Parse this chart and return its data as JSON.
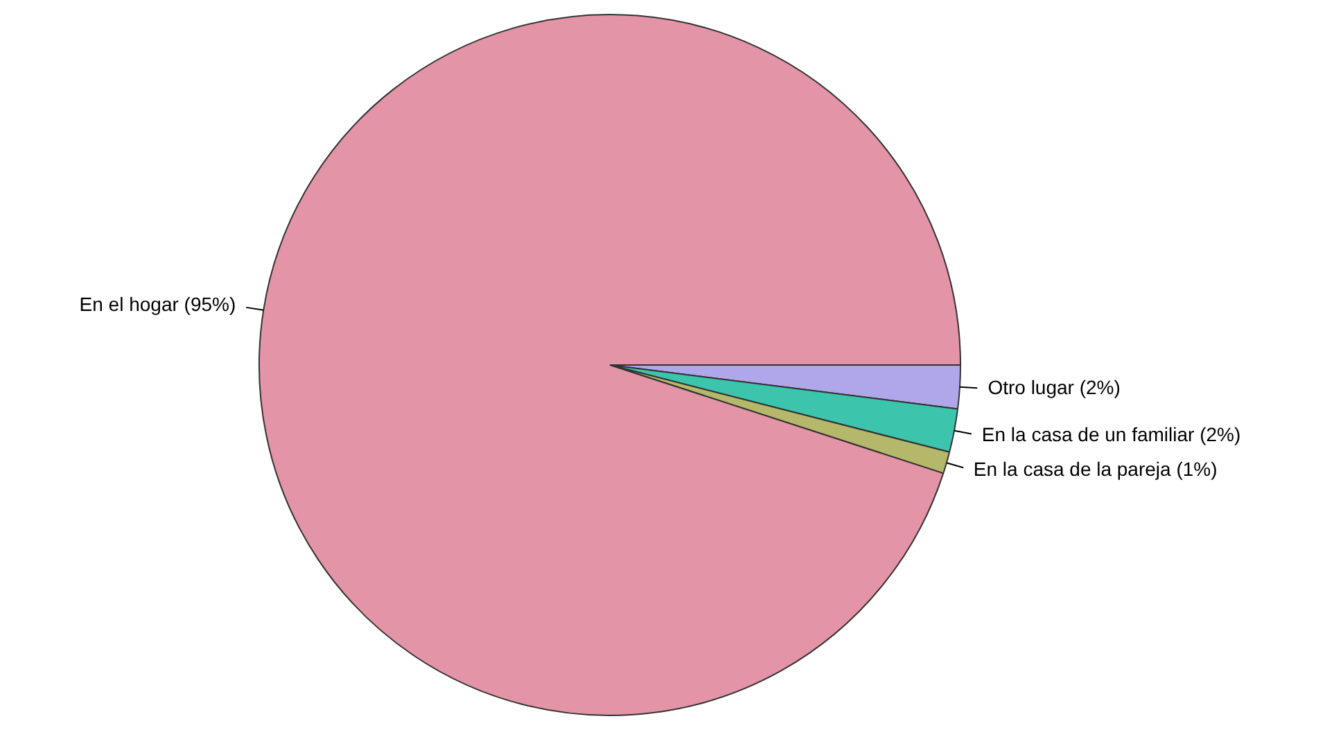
{
  "chart_data": {
    "type": "pie",
    "categories": [
      "Otro lugar (2%)",
      "En la casa de un familiar (2%)",
      "En la casa de la pareja (1%)",
      "En el hogar (95%)"
    ],
    "values": [
      2,
      2,
      1,
      95
    ],
    "colors": [
      "#b0a6ea",
      "#3cc4ad",
      "#b5b86a",
      "#e394a6"
    ],
    "legend": false
  }
}
